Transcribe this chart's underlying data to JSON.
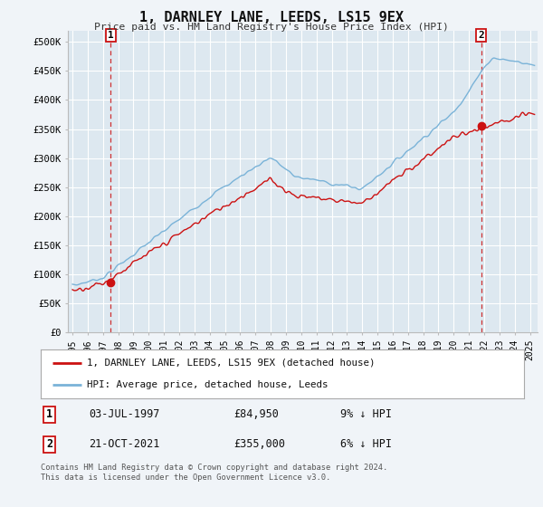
{
  "title": "1, DARNLEY LANE, LEEDS, LS15 9EX",
  "subtitle": "Price paid vs. HM Land Registry's House Price Index (HPI)",
  "ylim": [
    0,
    520000
  ],
  "xlim_start": 1994.7,
  "xlim_end": 2025.5,
  "hpi_color": "#7ab3d8",
  "price_color": "#cc1111",
  "sale1_x": 1997.51,
  "sale1_y": 84950,
  "sale1_label": "1",
  "sale2_x": 2021.81,
  "sale2_y": 355000,
  "sale2_label": "2",
  "background_color": "#f0f4f8",
  "plot_bg": "#dde8f0",
  "grid_color": "#ffffff",
  "legend_line1": "1, DARNLEY LANE, LEEDS, LS15 9EX (detached house)",
  "legend_line2": "HPI: Average price, detached house, Leeds",
  "table_row1_num": "1",
  "table_row1_date": "03-JUL-1997",
  "table_row1_price": "£84,950",
  "table_row1_hpi": "9% ↓ HPI",
  "table_row2_num": "2",
  "table_row2_date": "21-OCT-2021",
  "table_row2_price": "£355,000",
  "table_row2_hpi": "6% ↓ HPI",
  "footer": "Contains HM Land Registry data © Crown copyright and database right 2024.\nThis data is licensed under the Open Government Licence v3.0.",
  "yticks": [
    0,
    50000,
    100000,
    150000,
    200000,
    250000,
    300000,
    350000,
    400000,
    450000,
    500000
  ],
  "ytick_labels": [
    "£0",
    "£50K",
    "£100K",
    "£150K",
    "£200K",
    "£250K",
    "£300K",
    "£350K",
    "£400K",
    "£450K",
    "£500K"
  ],
  "xtick_years": [
    1995,
    1996,
    1997,
    1998,
    1999,
    2000,
    2001,
    2002,
    2003,
    2004,
    2005,
    2006,
    2007,
    2008,
    2009,
    2010,
    2011,
    2012,
    2013,
    2014,
    2015,
    2016,
    2017,
    2018,
    2019,
    2020,
    2021,
    2022,
    2023,
    2024,
    2025
  ]
}
